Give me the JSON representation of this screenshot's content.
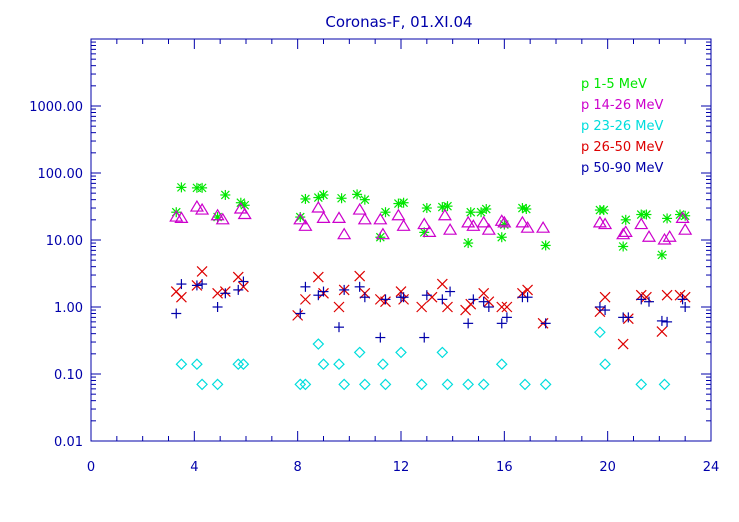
{
  "chart_data": {
    "type": "scatter",
    "title": "Coronas-F, 01.XI.04",
    "xlabel": "",
    "ylabel": "",
    "xlim": [
      0,
      24
    ],
    "ylim": [
      0.01,
      10000
    ],
    "yscale": "log",
    "x_ticks": [
      "0",
      "4",
      "8",
      "12",
      "16",
      "20",
      "24"
    ],
    "y_ticks": [
      "0.01",
      "0.10",
      "1.00",
      "10.00",
      "100.00",
      "1000.00"
    ],
    "legend_position": "top-right",
    "grid": false,
    "axis_color": "#0000aa",
    "series": [
      {
        "name": "p  1-5  MeV",
        "color": "#00e600",
        "marker": "asterisk",
        "points": [
          [
            3.3,
            26
          ],
          [
            3.5,
            61
          ],
          [
            4.1,
            60
          ],
          [
            4.3,
            60
          ],
          [
            4.9,
            22
          ],
          [
            5.2,
            47
          ],
          [
            5.8,
            36
          ],
          [
            5.95,
            33
          ],
          [
            8.1,
            22
          ],
          [
            8.3,
            41
          ],
          [
            8.8,
            43
          ],
          [
            9.0,
            47
          ],
          [
            9.7,
            42
          ],
          [
            10.3,
            48
          ],
          [
            10.6,
            40
          ],
          [
            11.2,
            11
          ],
          [
            11.4,
            26
          ],
          [
            11.9,
            35
          ],
          [
            12.1,
            36
          ],
          [
            12.9,
            13
          ],
          [
            13.0,
            30
          ],
          [
            13.6,
            31
          ],
          [
            13.8,
            32
          ],
          [
            14.6,
            9
          ],
          [
            14.7,
            26
          ],
          [
            15.1,
            26
          ],
          [
            15.3,
            29
          ],
          [
            15.9,
            11
          ],
          [
            16.0,
            17
          ],
          [
            16.7,
            30
          ],
          [
            16.85,
            29
          ],
          [
            17.6,
            8.3
          ],
          [
            19.7,
            28
          ],
          [
            19.85,
            28
          ],
          [
            20.6,
            8
          ],
          [
            20.7,
            20
          ],
          [
            21.3,
            24
          ],
          [
            21.5,
            24
          ],
          [
            22.1,
            6
          ],
          [
            22.3,
            21
          ],
          [
            22.8,
            24
          ],
          [
            23.0,
            23
          ]
        ]
      },
      {
        "name": "p 14-26 MeV",
        "color": "#cc00cc",
        "marker": "triangle",
        "points": [
          [
            3.3,
            22
          ],
          [
            3.5,
            21
          ],
          [
            4.1,
            31
          ],
          [
            4.3,
            28
          ],
          [
            4.9,
            23
          ],
          [
            5.1,
            20
          ],
          [
            5.8,
            29
          ],
          [
            5.95,
            24
          ],
          [
            8.1,
            20
          ],
          [
            8.3,
            16
          ],
          [
            8.8,
            30
          ],
          [
            9.0,
            21
          ],
          [
            9.6,
            21
          ],
          [
            9.8,
            12
          ],
          [
            10.4,
            28
          ],
          [
            10.6,
            20
          ],
          [
            11.2,
            20
          ],
          [
            11.3,
            12
          ],
          [
            11.9,
            23
          ],
          [
            12.1,
            16
          ],
          [
            12.9,
            17
          ],
          [
            13.1,
            13
          ],
          [
            13.7,
            23
          ],
          [
            13.9,
            14
          ],
          [
            14.6,
            18
          ],
          [
            14.8,
            16
          ],
          [
            15.2,
            18
          ],
          [
            15.4,
            14
          ],
          [
            15.9,
            19
          ],
          [
            16.0,
            18
          ],
          [
            16.7,
            18
          ],
          [
            16.9,
            15
          ],
          [
            17.5,
            15
          ],
          [
            19.7,
            18
          ],
          [
            19.9,
            17
          ],
          [
            20.6,
            12
          ],
          [
            20.7,
            13
          ],
          [
            21.3,
            17
          ],
          [
            21.6,
            11
          ],
          [
            22.2,
            10
          ],
          [
            22.4,
            11
          ],
          [
            22.9,
            21
          ],
          [
            23.0,
            14
          ]
        ]
      },
      {
        "name": "p 23-26 MeV",
        "color": "#00dddd",
        "marker": "diamond",
        "points": [
          [
            3.5,
            0.14
          ],
          [
            4.1,
            0.14
          ],
          [
            4.3,
            0.07
          ],
          [
            4.9,
            0.07
          ],
          [
            5.7,
            0.14
          ],
          [
            5.9,
            0.14
          ],
          [
            8.1,
            0.07
          ],
          [
            8.3,
            0.07
          ],
          [
            8.8,
            0.28
          ],
          [
            9.0,
            0.14
          ],
          [
            9.6,
            0.14
          ],
          [
            9.8,
            0.07
          ],
          [
            10.4,
            0.21
          ],
          [
            10.6,
            0.07
          ],
          [
            11.3,
            0.14
          ],
          [
            11.4,
            0.07
          ],
          [
            12.0,
            0.21
          ],
          [
            12.8,
            0.07
          ],
          [
            13.6,
            0.21
          ],
          [
            13.8,
            0.07
          ],
          [
            14.6,
            0.07
          ],
          [
            15.2,
            0.07
          ],
          [
            15.9,
            0.14
          ],
          [
            16.8,
            0.07
          ],
          [
            17.6,
            0.07
          ],
          [
            19.7,
            0.42
          ],
          [
            19.9,
            0.14
          ],
          [
            21.3,
            0.07
          ],
          [
            22.2,
            0.07
          ]
        ]
      },
      {
        "name": "p 26-50 MeV",
        "color": "#dd0000",
        "marker": "x",
        "points": [
          [
            3.3,
            1.7
          ],
          [
            3.5,
            1.4
          ],
          [
            4.1,
            2.1
          ],
          [
            4.3,
            3.4
          ],
          [
            4.9,
            1.6
          ],
          [
            5.2,
            1.7
          ],
          [
            5.7,
            2.8
          ],
          [
            5.9,
            2.0
          ],
          [
            8.0,
            0.75
          ],
          [
            8.3,
            1.3
          ],
          [
            8.8,
            2.8
          ],
          [
            9.0,
            1.6
          ],
          [
            9.6,
            1.0
          ],
          [
            9.8,
            1.8
          ],
          [
            10.4,
            2.9
          ],
          [
            10.6,
            1.6
          ],
          [
            11.2,
            1.3
          ],
          [
            11.4,
            1.2
          ],
          [
            12.0,
            1.7
          ],
          [
            12.1,
            1.3
          ],
          [
            12.8,
            1.0
          ],
          [
            13.2,
            1.4
          ],
          [
            13.6,
            2.2
          ],
          [
            13.8,
            1.0
          ],
          [
            14.5,
            0.9
          ],
          [
            14.7,
            1.1
          ],
          [
            15.2,
            1.6
          ],
          [
            15.4,
            1.2
          ],
          [
            15.9,
            1.0
          ],
          [
            16.1,
            1.0
          ],
          [
            16.7,
            1.6
          ],
          [
            16.9,
            1.8
          ],
          [
            17.5,
            0.57
          ],
          [
            19.7,
            0.85
          ],
          [
            19.9,
            1.4
          ],
          [
            20.6,
            0.28
          ],
          [
            20.8,
            0.67
          ],
          [
            21.3,
            1.5
          ],
          [
            21.5,
            1.4
          ],
          [
            22.1,
            0.43
          ],
          [
            22.3,
            1.5
          ],
          [
            22.8,
            1.5
          ],
          [
            23.0,
            1.4
          ]
        ]
      },
      {
        "name": "p 50-90 MeV",
        "color": "#0000aa",
        "marker": "plus",
        "points": [
          [
            3.3,
            0.8
          ],
          [
            3.5,
            2.2
          ],
          [
            4.1,
            2.1
          ],
          [
            4.3,
            2.2
          ],
          [
            4.9,
            1.0
          ],
          [
            5.2,
            1.6
          ],
          [
            5.7,
            1.8
          ],
          [
            5.9,
            2.4
          ],
          [
            8.1,
            0.8
          ],
          [
            8.3,
            2.0
          ],
          [
            8.8,
            1.5
          ],
          [
            9.0,
            1.7
          ],
          [
            9.6,
            0.5
          ],
          [
            9.8,
            1.8
          ],
          [
            10.4,
            2.0
          ],
          [
            10.6,
            1.4
          ],
          [
            11.2,
            0.35
          ],
          [
            11.4,
            1.3
          ],
          [
            12.0,
            1.4
          ],
          [
            12.1,
            1.4
          ],
          [
            12.9,
            0.35
          ],
          [
            13.0,
            1.5
          ],
          [
            13.6,
            1.3
          ],
          [
            13.9,
            1.7
          ],
          [
            14.6,
            0.57
          ],
          [
            14.8,
            1.3
          ],
          [
            15.2,
            1.2
          ],
          [
            15.4,
            1.0
          ],
          [
            15.9,
            0.57
          ],
          [
            16.1,
            0.7
          ],
          [
            16.7,
            1.4
          ],
          [
            16.9,
            1.4
          ],
          [
            17.6,
            0.57
          ],
          [
            19.7,
            1.0
          ],
          [
            19.9,
            0.9
          ],
          [
            20.6,
            0.7
          ],
          [
            20.8,
            0.7
          ],
          [
            21.3,
            1.3
          ],
          [
            21.6,
            1.2
          ],
          [
            22.1,
            0.62
          ],
          [
            22.3,
            0.6
          ],
          [
            22.9,
            1.3
          ],
          [
            23.0,
            1.0
          ]
        ]
      }
    ]
  }
}
